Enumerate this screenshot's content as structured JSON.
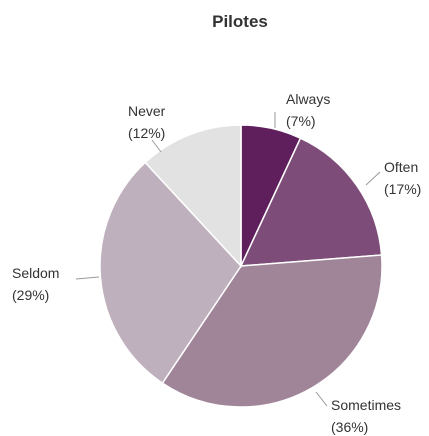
{
  "chart_data": {
    "type": "pie",
    "title": "Pilotes",
    "start_angle_deg": 0,
    "direction": "clockwise",
    "slices": [
      {
        "label": "Always",
        "value": 7,
        "pct_label": "(7%)",
        "color": "#5e1f5c"
      },
      {
        "label": "Often",
        "value": 17,
        "pct_label": "(17%)",
        "color": "#7d4c78"
      },
      {
        "label": "Sometimes",
        "value": 36,
        "pct_label": "(36%)",
        "color": "#a08599"
      },
      {
        "label": "Seldom",
        "value": 29,
        "pct_label": "(29%)",
        "color": "#bfb0bd"
      },
      {
        "label": "Never",
        "value": 12,
        "pct_label": "(12%)",
        "color": "#e2e2e2"
      }
    ],
    "slice_border_color": "#ffffff",
    "leader_line_color": "#999999"
  }
}
